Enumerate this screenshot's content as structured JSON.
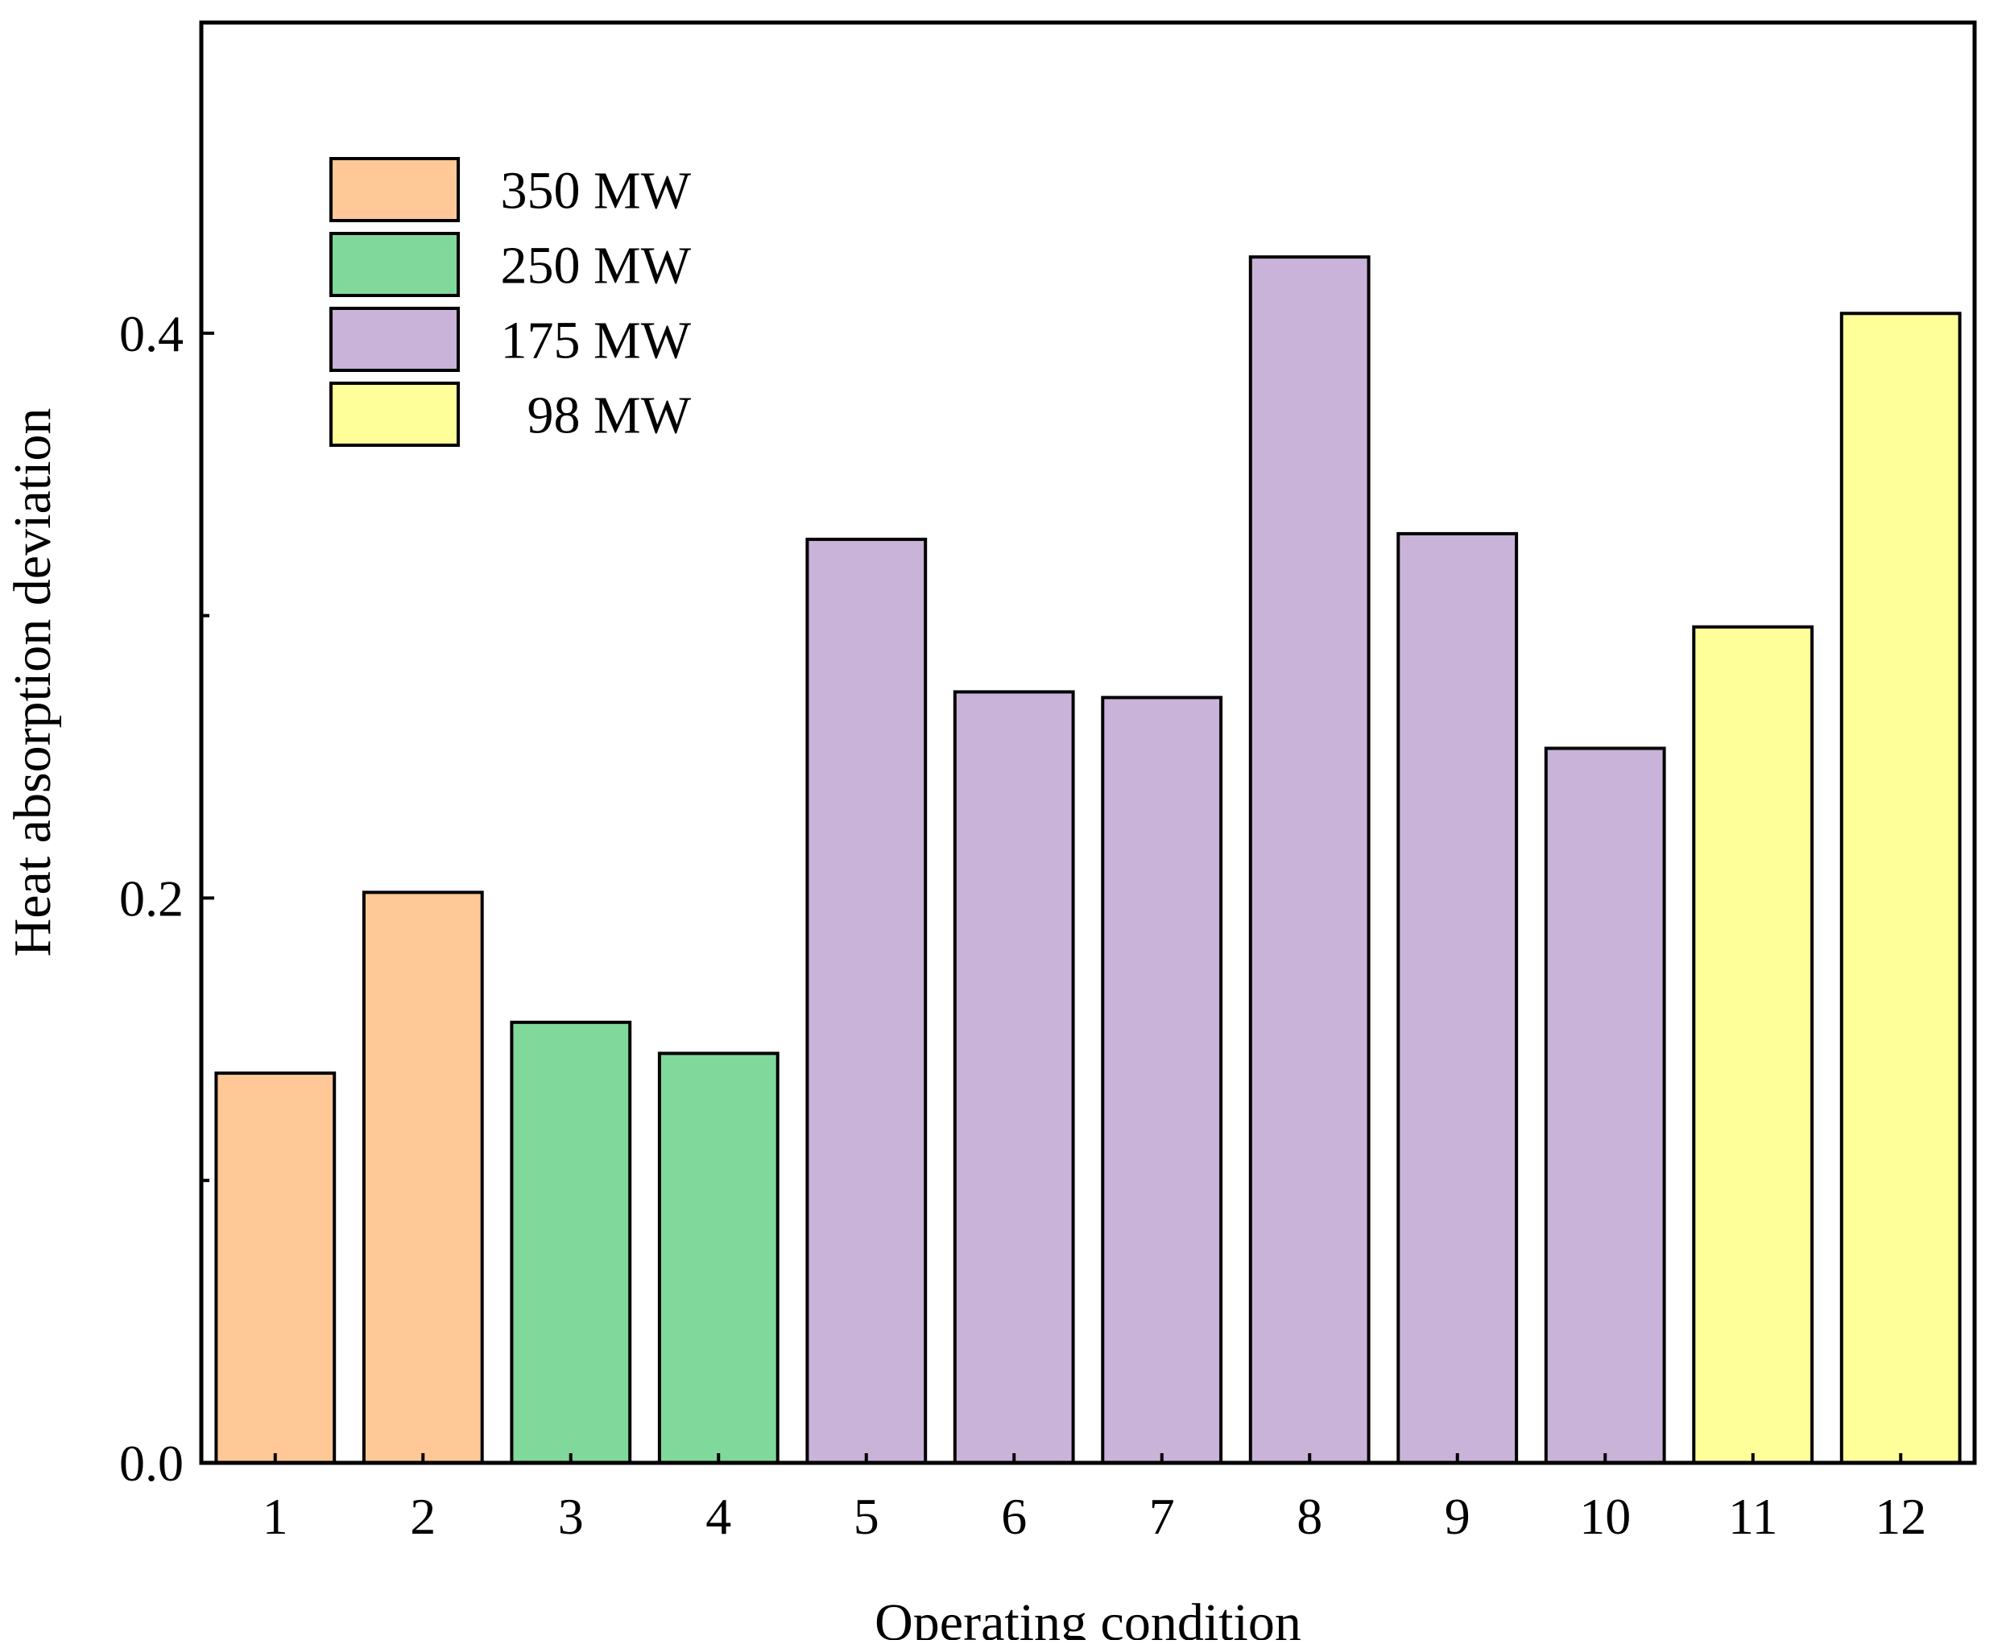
{
  "chart_data": {
    "type": "bar",
    "title": "",
    "xlabel": "Operating condition",
    "ylabel": "Heat absorption deviation",
    "categories": [
      "1",
      "2",
      "3",
      "4",
      "5",
      "6",
      "7",
      "8",
      "9",
      "10",
      "11",
      "12"
    ],
    "values": [
      0.138,
      0.202,
      0.156,
      0.145,
      0.327,
      0.273,
      0.271,
      0.427,
      0.329,
      0.253,
      0.296,
      0.407
    ],
    "bar_groups": [
      "350 MW",
      "350 MW",
      "250 MW",
      "250 MW",
      "175 MW",
      "175 MW",
      "175 MW",
      "175 MW",
      "175 MW",
      "175 MW",
      "98 MW",
      "98 MW"
    ],
    "ylim": [
      0.0,
      0.51
    ],
    "y_major_ticks": [
      0.0,
      0.2,
      0.4
    ],
    "y_major_tick_labels": [
      "0.0",
      "0.2",
      "0.4"
    ],
    "y_minor_ticks": [
      0.1,
      0.3
    ],
    "grid": false,
    "legend": {
      "position": "top-left",
      "entries": [
        {
          "label": "350 MW",
          "color": "#FFC896"
        },
        {
          "label": "250 MW",
          "color": "#80D99A"
        },
        {
          "label": "175 MW",
          "color": "#C9B3D8"
        },
        {
          "label": "98 MW",
          "color": "#FFFF99"
        }
      ]
    }
  }
}
